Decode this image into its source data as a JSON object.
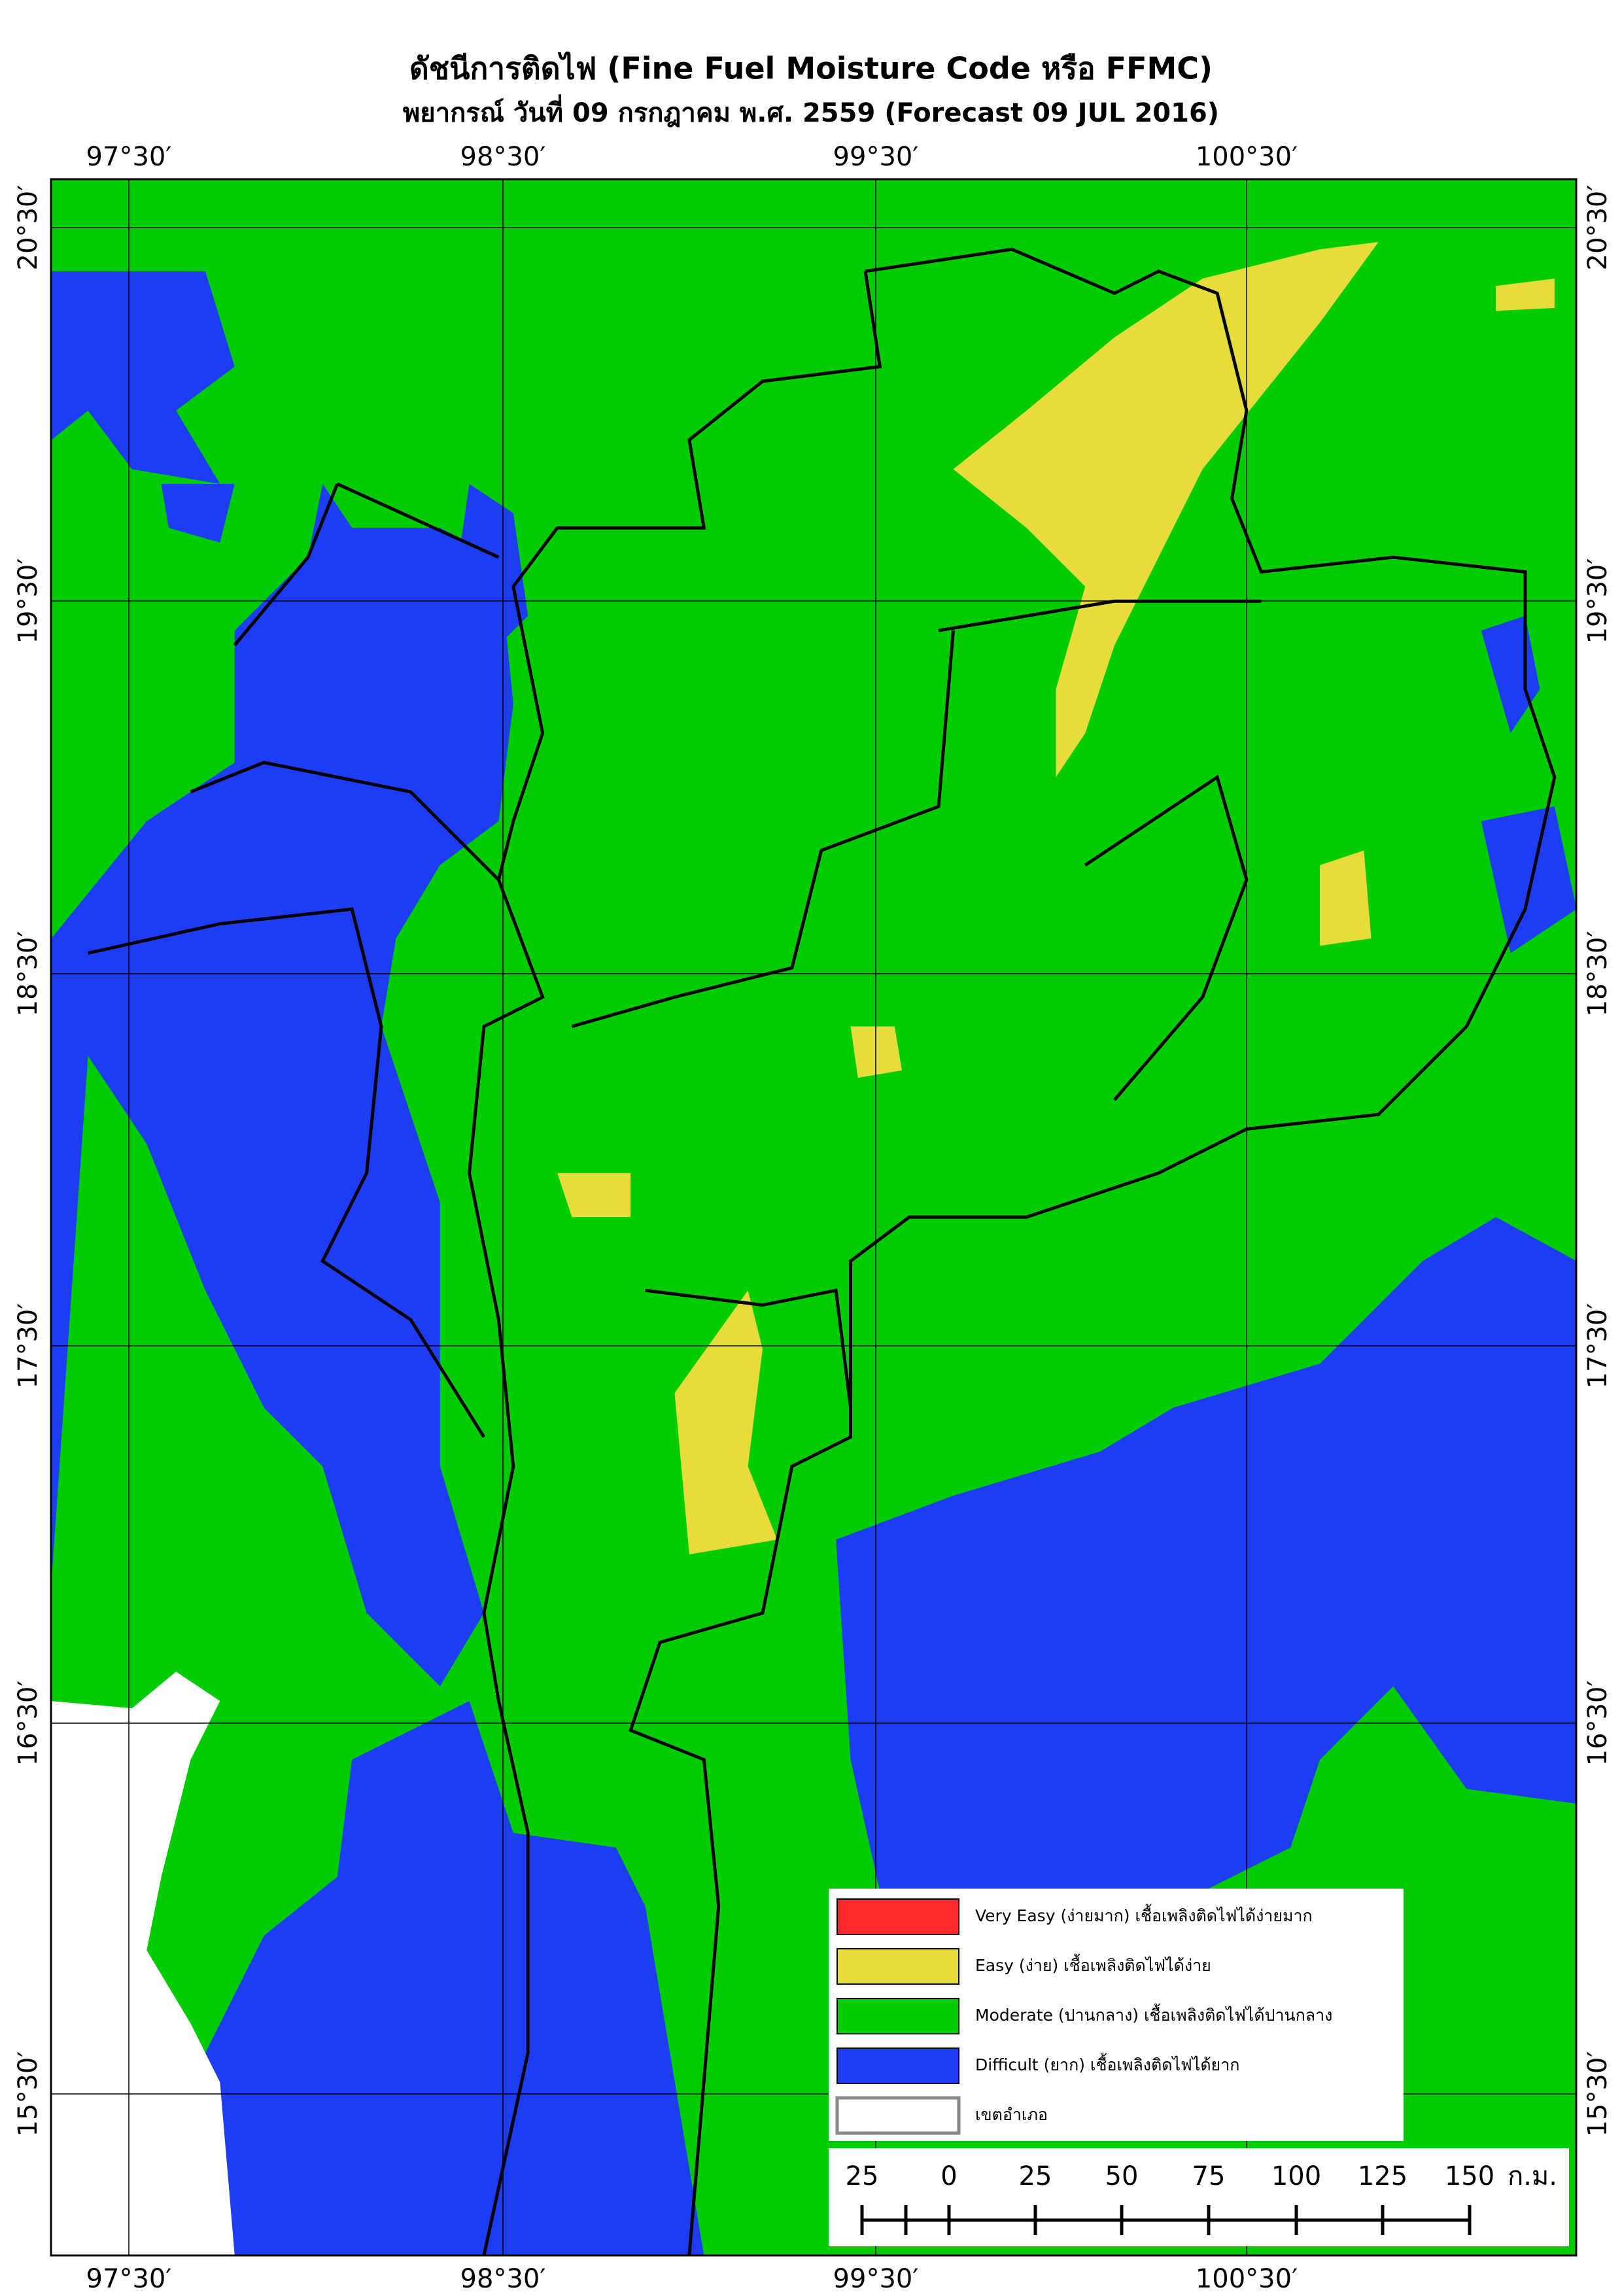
{
  "title": "ดัชนีการติดไฟ (Fine Fuel Moisture Code หรือ FFMC)",
  "subtitle": "พยากรณ์ วันที่ 09 กรกฎาคม พ.ศ. 2559 (Forecast 09 JUL 2016)",
  "lon_labels": [
    "97°30′",
    "98°30′",
    "99°30′",
    "100°30′"
  ],
  "lat_labels": [
    "20°30′",
    "19°30′",
    "18°30′",
    "17°30′",
    "16°30′",
    "15°30′"
  ],
  "legend": [
    {
      "label": "Very Easy (ง่ายมาก) เชื้อเพลิงติดไฟได้ง่ายมาก",
      "color": "#ff2a2a"
    },
    {
      "label": "Easy (ง่าย) เชื้อเพลิงติดไฟได้ง่าย",
      "color": "#e6dc3c"
    },
    {
      "label": "Moderate (ปานกลาง) เชื้อเพลิงติดไฟได้ปานกลาง",
      "color": "#00cc00"
    },
    {
      "label": "Difficult (ยาก) เชื้อเพลิงติดไฟได้ยาก",
      "color": "#1f3cf5"
    },
    {
      "label": "เขตอำเภอ",
      "color": "#ffffff"
    }
  ],
  "scale_bar": {
    "ticks": [
      "25",
      "0",
      "25",
      "50",
      "75",
      "100",
      "125",
      "150"
    ],
    "unit": "ก.ม."
  }
}
